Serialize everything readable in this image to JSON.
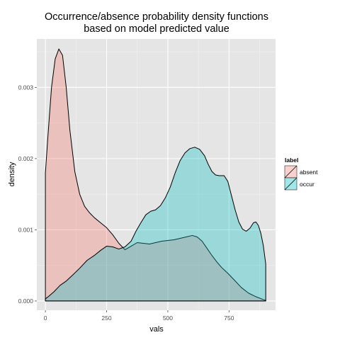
{
  "chart_data": {
    "type": "area",
    "title_lines": [
      "Occurrence/absence probability density functions",
      "based on model predicted value"
    ],
    "xlabel": "vals",
    "ylabel": "density",
    "xlim": [
      -35,
      940
    ],
    "ylim": [
      -0.00013,
      0.00368
    ],
    "x_ticks": [
      0,
      250,
      500,
      750
    ],
    "x_tick_labels": [
      "0",
      "250",
      "500",
      "750"
    ],
    "y_ticks": [
      0,
      0.001,
      0.002,
      0.003
    ],
    "y_tick_labels": [
      "0.000",
      "0.001",
      "0.002",
      "0.003"
    ],
    "grid": true,
    "legend": {
      "title": "label",
      "placement": "right"
    },
    "series": [
      {
        "name": "absent",
        "fill": "#F8766D",
        "points": [
          [
            0,
            0.0018
          ],
          [
            10,
            0.0023
          ],
          [
            25,
            0.003
          ],
          [
            40,
            0.0034
          ],
          [
            55,
            0.00354
          ],
          [
            70,
            0.00345
          ],
          [
            85,
            0.003
          ],
          [
            100,
            0.0024
          ],
          [
            120,
            0.00182
          ],
          [
            140,
            0.0015
          ],
          [
            160,
            0.00133
          ],
          [
            180,
            0.00124
          ],
          [
            200,
            0.00117
          ],
          [
            225,
            0.0011
          ],
          [
            250,
            0.00103
          ],
          [
            275,
            0.00093
          ],
          [
            300,
            0.00081
          ],
          [
            325,
            0.00072
          ],
          [
            350,
            0.00077
          ],
          [
            375,
            0.00082
          ],
          [
            400,
            0.00081
          ],
          [
            425,
            0.0008
          ],
          [
            450,
            0.00082
          ],
          [
            475,
            0.00084
          ],
          [
            500,
            0.00085
          ],
          [
            525,
            0.00086
          ],
          [
            550,
            0.00088
          ],
          [
            575,
            0.0009
          ],
          [
            600,
            0.00092
          ],
          [
            620,
            0.0009
          ],
          [
            640,
            0.00084
          ],
          [
            660,
            0.00074
          ],
          [
            680,
            0.00064
          ],
          [
            700,
            0.00055
          ],
          [
            720,
            0.00047
          ],
          [
            745,
            0.00039
          ],
          [
            770,
            0.0003
          ],
          [
            800,
            0.00019
          ],
          [
            830,
            0.00011
          ],
          [
            860,
            6e-05
          ],
          [
            890,
            2e-05
          ],
          [
            900,
            1e-05
          ]
        ]
      },
      {
        "name": "occur",
        "fill": "#00BFC4",
        "points": [
          [
            0,
            3e-05
          ],
          [
            15,
            7e-05
          ],
          [
            35,
            0.00013
          ],
          [
            60,
            0.00022
          ],
          [
            85,
            0.00028
          ],
          [
            110,
            0.00036
          ],
          [
            140,
            0.00046
          ],
          [
            170,
            0.00057
          ],
          [
            200,
            0.00064
          ],
          [
            225,
            0.00071
          ],
          [
            250,
            0.00077
          ],
          [
            275,
            0.00076
          ],
          [
            300,
            0.00073
          ],
          [
            325,
            0.00076
          ],
          [
            350,
            0.00084
          ],
          [
            370,
            0.00098
          ],
          [
            390,
            0.0011
          ],
          [
            410,
            0.00121
          ],
          [
            430,
            0.00126
          ],
          [
            450,
            0.00128
          ],
          [
            470,
            0.00134
          ],
          [
            490,
            0.00145
          ],
          [
            510,
            0.0016
          ],
          [
            530,
            0.0018
          ],
          [
            550,
            0.00197
          ],
          [
            570,
            0.00208
          ],
          [
            590,
            0.00214
          ],
          [
            610,
            0.00216
          ],
          [
            630,
            0.00213
          ],
          [
            650,
            0.00204
          ],
          [
            665,
            0.00192
          ],
          [
            680,
            0.00182
          ],
          [
            695,
            0.00177
          ],
          [
            710,
            0.00176
          ],
          [
            730,
            0.00176
          ],
          [
            745,
            0.00168
          ],
          [
            760,
            0.00148
          ],
          [
            775,
            0.00128
          ],
          [
            790,
            0.00111
          ],
          [
            805,
            0.00101
          ],
          [
            820,
            0.00098
          ],
          [
            835,
            0.00102
          ],
          [
            850,
            0.0011
          ],
          [
            860,
            0.00111
          ],
          [
            870,
            0.00106
          ],
          [
            880,
            0.00095
          ],
          [
            890,
            0.00078
          ],
          [
            900,
            0.00052
          ]
        ]
      }
    ]
  }
}
